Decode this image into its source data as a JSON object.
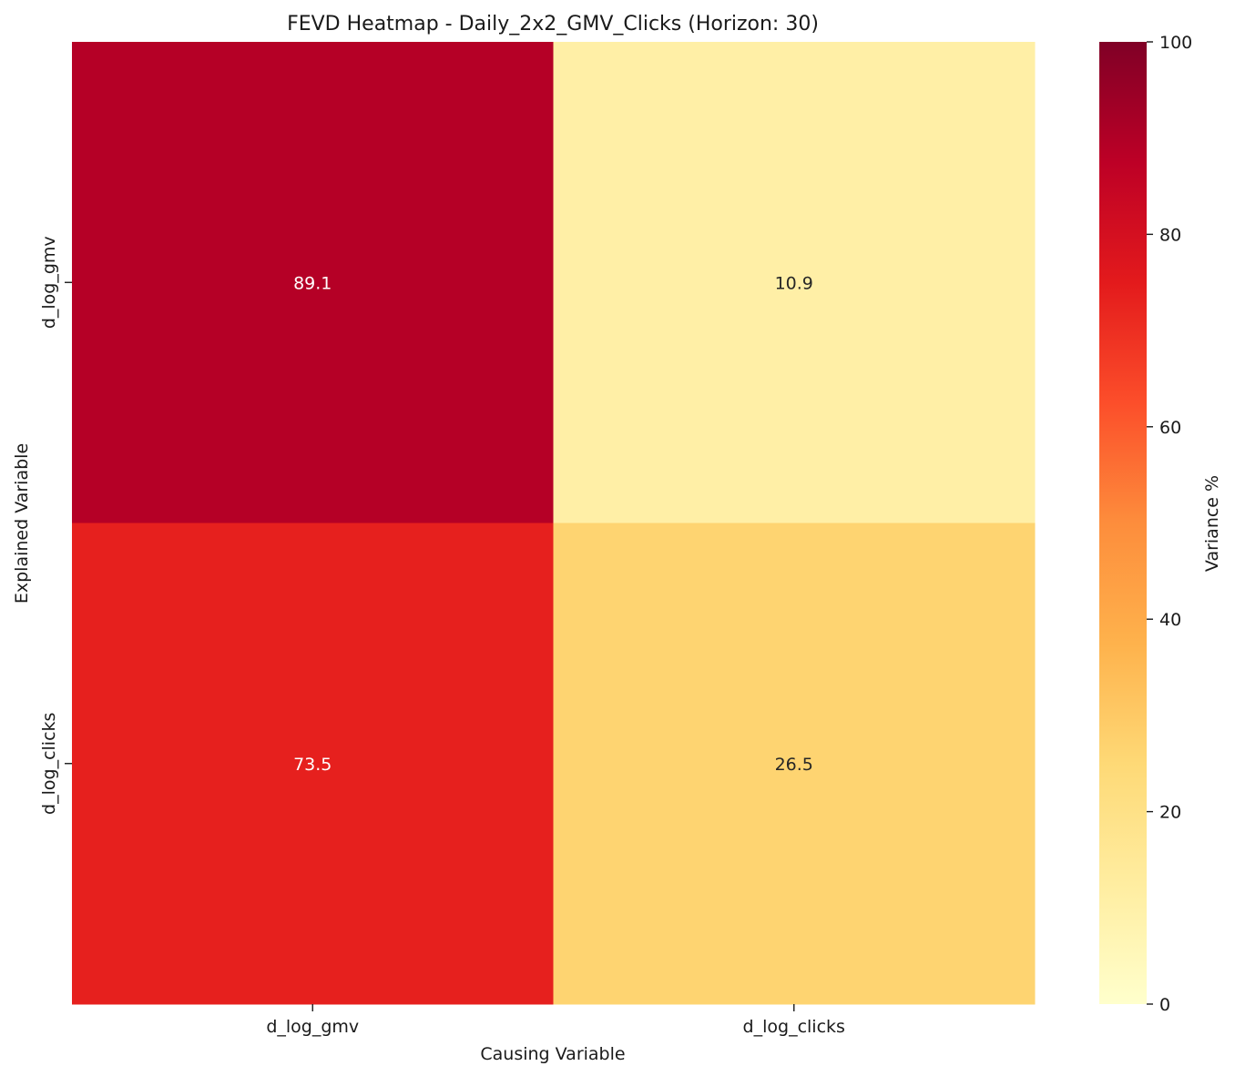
{
  "chart_data": {
    "type": "heatmap",
    "title": "FEVD Heatmap - Daily_2x2_GMV_Clicks (Horizon: 30)",
    "xlabel": "Causing Variable",
    "ylabel": "Explained Variable",
    "x_categories": [
      "d_log_gmv",
      "d_log_clicks"
    ],
    "y_categories": [
      "d_log_gmv",
      "d_log_clicks"
    ],
    "values": [
      [
        89.1,
        10.9
      ],
      [
        73.5,
        26.5
      ]
    ],
    "colorbar": {
      "label": "Variance %",
      "range": [
        0,
        100
      ],
      "ticks": [
        "0",
        "20",
        "40",
        "60",
        "80",
        "100"
      ],
      "colormap": "YlOrRd",
      "colors": [
        "#ffffcc",
        "#ffeda0",
        "#fed976",
        "#feb24c",
        "#fd8d3c",
        "#fc4e2a",
        "#e31a1c",
        "#bd0026",
        "#800026"
      ]
    }
  }
}
